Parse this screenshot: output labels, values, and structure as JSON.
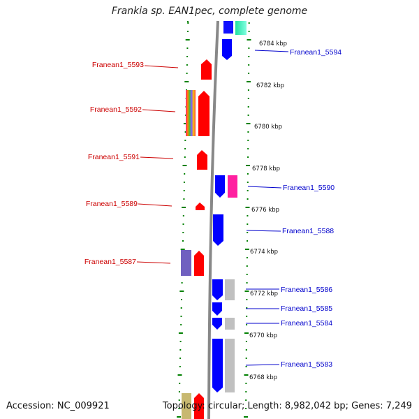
{
  "title": "Frankia sp. EAN1pec, complete genome",
  "accession": "Accession: NC_009921",
  "topology": "Topology: circular; Length: 8,982,042 bp; Genes: 7,249",
  "colors": {
    "forward": "#ff0000",
    "reverse": "#0000ff",
    "backbone": "#888888",
    "ticks": "#008000",
    "gray_block": "#c0c0c0"
  },
  "kbp_labels": [
    "6784 kbp",
    "6782 kbp",
    "6780 kbp",
    "6778 kbp",
    "6776 kbp",
    "6774 kbp",
    "6772 kbp",
    "6770 kbp",
    "6768 kbp"
  ],
  "left_genes": [
    "Franean1_5593",
    "Franean1_5592",
    "Franean1_5591",
    "Franean1_5589",
    "Franean1_5587"
  ],
  "right_genes": [
    "Franean1_5594",
    "Franean1_5590",
    "Franean1_5588",
    "Franean1_5586",
    "Franean1_5585",
    "Franean1_5584",
    "Franean1_5583"
  ]
}
